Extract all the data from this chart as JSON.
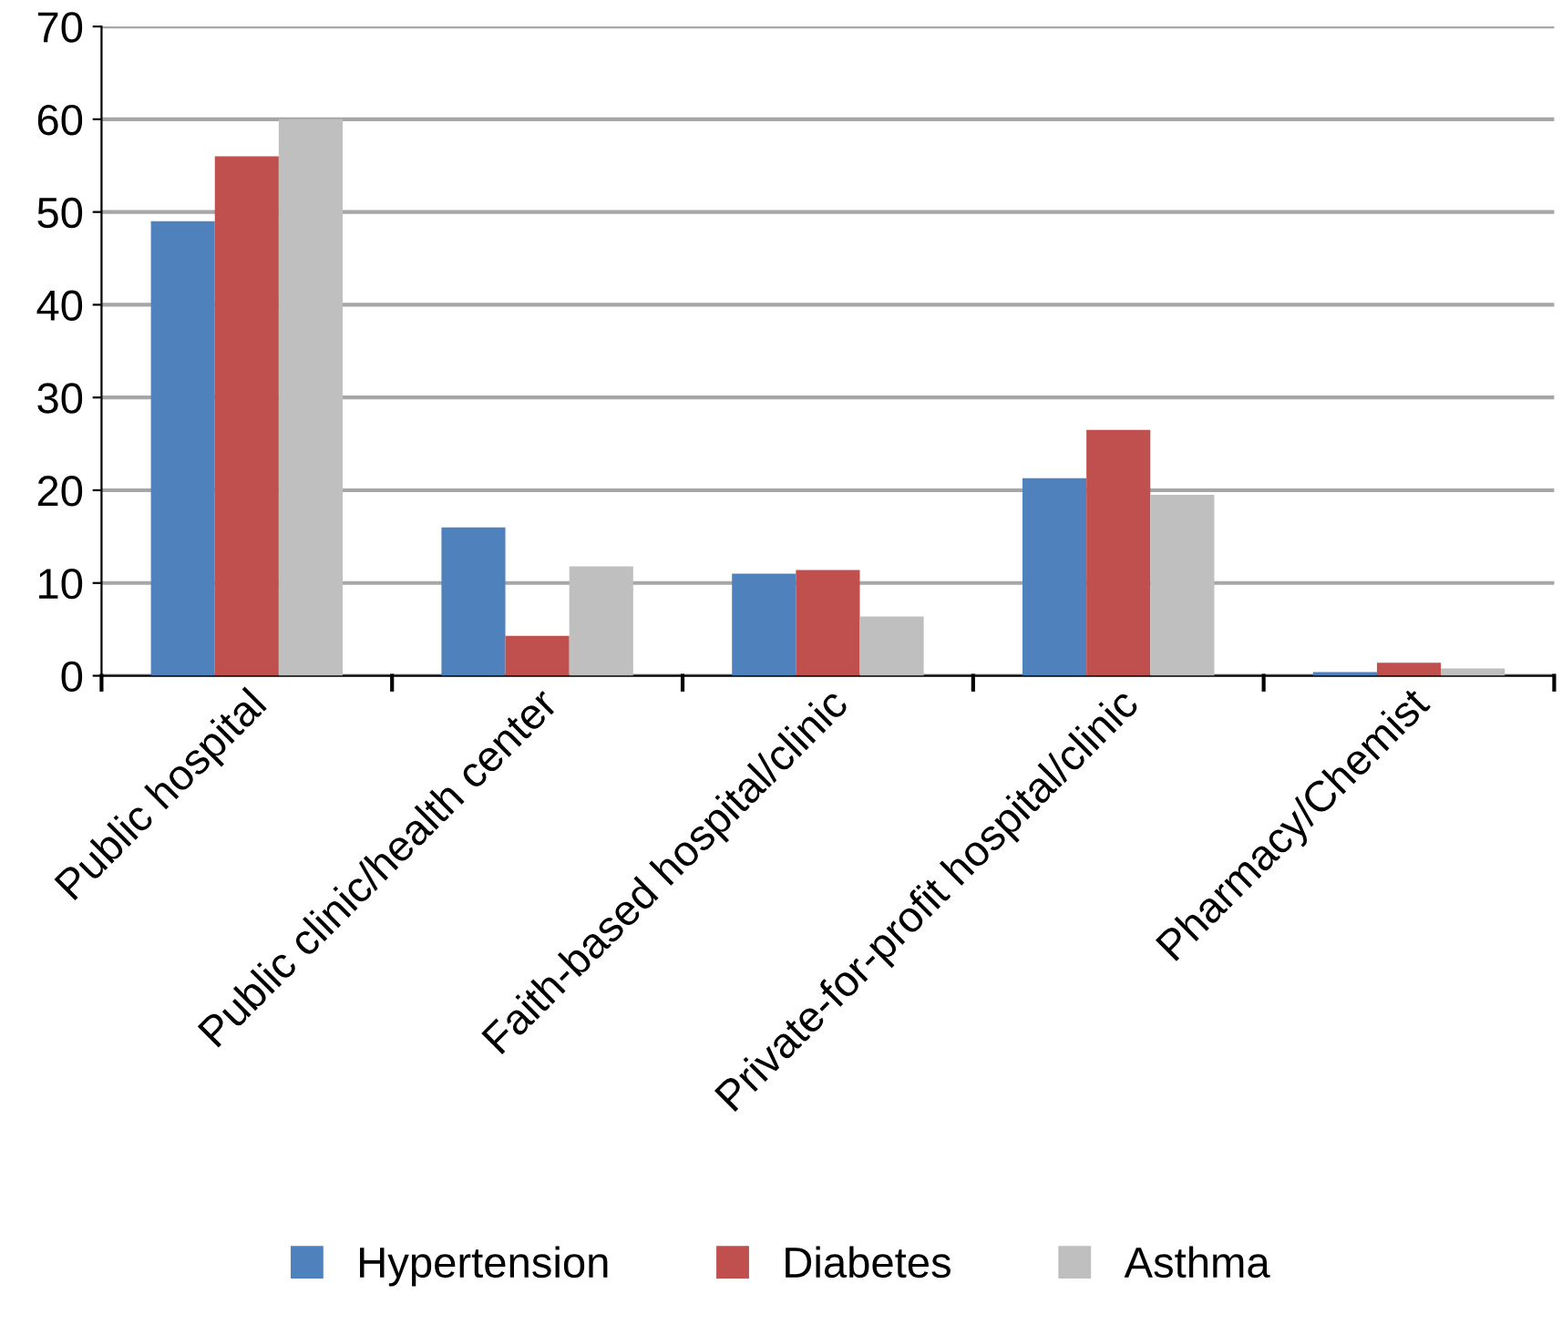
{
  "chart_data": {
    "type": "bar",
    "categories": [
      "Public hospital",
      "Public clinic/health center",
      "Faith-based hospital/clinic",
      "Private-for-profit hospital/clinic",
      "Pharmacy/Chemist"
    ],
    "series": [
      {
        "name": "Hypertension",
        "color": "#4f81bd",
        "values": [
          49,
          16,
          11,
          21.3,
          0.4
        ]
      },
      {
        "name": "Diabetes",
        "color": "#c0504d",
        "values": [
          56,
          4.3,
          11.4,
          26.5,
          1.4
        ]
      },
      {
        "name": "Asthma",
        "color": "#bfbfbf",
        "values": [
          60,
          11.8,
          6.4,
          19.5,
          0.8
        ]
      }
    ],
    "ylim": [
      0,
      70
    ],
    "yticks": [
      0,
      10,
      20,
      30,
      40,
      50,
      60,
      70
    ],
    "grid": "y",
    "legend": "bottom"
  }
}
